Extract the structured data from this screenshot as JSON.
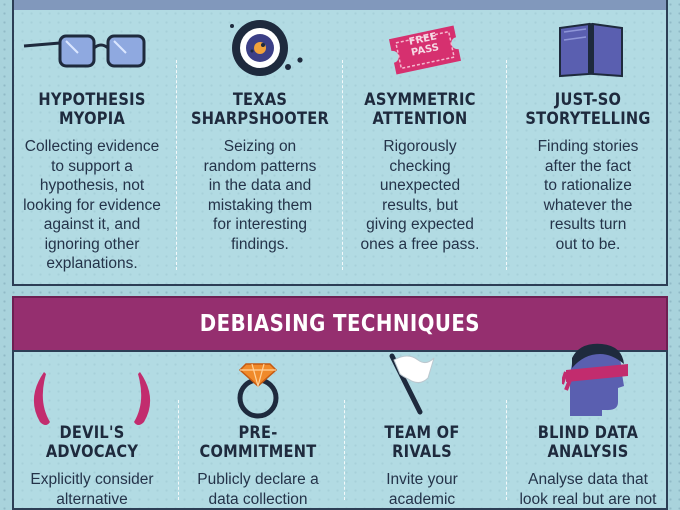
{
  "biases": [
    {
      "title": "HYPOTHESIS\nMYOPIA",
      "desc": "Collecting evidence\nto support a\nhypothesis, not\nlooking for evidence\nagainst it, and\nignoring other\nexplanations.",
      "icon": "glasses-icon"
    },
    {
      "title": "TEXAS\nSHARPSHOOTER",
      "desc": "Seizing on\nrandom patterns\nin the data and\nmistaking them\nfor interesting\nfindings.",
      "icon": "target-icon"
    },
    {
      "title": "ASYMMETRIC\nATTENTION",
      "desc": "Rigorously\nchecking\nunexpected\nresults, but\ngiving expected\nones a free pass.",
      "icon": "free-pass-ticket-icon",
      "ticket_text": "FREE\nPASS"
    },
    {
      "title": "JUST-SO\nSTORYTELLING",
      "desc": "Finding stories\nafter the fact\nto rationalize\nwhatever the\nresults turn\nout to be.",
      "icon": "open-book-icon"
    }
  ],
  "section_title": "DEBIASING TECHNIQUES",
  "techniques": [
    {
      "title": "DEVIL'S\nADVOCACY",
      "desc": "Explicitly consider\nalternative",
      "icon": "devil-horns-icon"
    },
    {
      "title": "PRE-\nCOMMITMENT",
      "desc": "Publicly declare a\ndata collection",
      "icon": "ring-icon"
    },
    {
      "title": "TEAM OF\nRIVALS",
      "desc": "Invite your\nacademic",
      "icon": "white-flag-icon"
    },
    {
      "title": "BLIND DATA\nANALYSIS",
      "desc": "Analyse data that\nlook real but are not",
      "icon": "blindfolded-face-icon"
    }
  ],
  "colors": {
    "navy": "#3c3f86",
    "magenta": "#952f6f",
    "background": "#a9d3dc",
    "text": "#243349"
  }
}
